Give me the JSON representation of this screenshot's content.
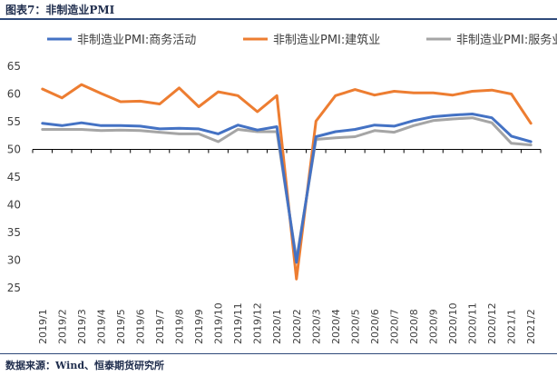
{
  "figure": {
    "title": "图表7：非制造业PMI",
    "source": "数据来源：Wind、恒泰期货研究所"
  },
  "chart_data": {
    "type": "line",
    "title": "",
    "xlabel": "",
    "ylabel": "",
    "ylim": [
      25,
      65
    ],
    "yticks": [
      25,
      30,
      35,
      40,
      45,
      50,
      55,
      60,
      65
    ],
    "reference_line": 50,
    "grid": false,
    "legend_position": "top",
    "categories": [
      "2019/1",
      "2019/2",
      "2019/3",
      "2019/4",
      "2019/5",
      "2019/6",
      "2019/7",
      "2019/8",
      "2019/9",
      "2019/10",
      "2019/11",
      "2019/12",
      "2020/1",
      "2020/2",
      "2020/3",
      "2020/4",
      "2020/5",
      "2020/6",
      "2020/7",
      "2020/8",
      "2020/9",
      "2020/10",
      "2020/11",
      "2020/12",
      "2021/1",
      "2021/2"
    ],
    "series": [
      {
        "name": "非制造业PMI:商务活动",
        "color": "#4472c4",
        "values": [
          54.7,
          54.3,
          54.8,
          54.3,
          54.3,
          54.2,
          53.7,
          53.8,
          53.7,
          52.8,
          54.4,
          53.5,
          54.1,
          29.6,
          52.3,
          53.2,
          53.6,
          54.4,
          54.2,
          55.2,
          55.9,
          56.2,
          56.4,
          55.7,
          52.4,
          51.4
        ]
      },
      {
        "name": "非制造业PMI:建筑业",
        "color": "#ed7d31",
        "values": [
          60.9,
          59.3,
          61.7,
          60.1,
          58.6,
          58.7,
          58.2,
          61.1,
          57.7,
          60.4,
          59.7,
          56.8,
          59.7,
          26.6,
          55.1,
          59.7,
          60.8,
          59.8,
          60.5,
          60.2,
          60.2,
          59.8,
          60.5,
          60.7,
          60.0,
          54.7
        ]
      },
      {
        "name": "非制造业PMI:服务业",
        "color": "#a5a5a5",
        "values": [
          53.6,
          53.6,
          53.6,
          53.4,
          53.5,
          53.4,
          53.1,
          52.8,
          52.8,
          51.4,
          53.6,
          53.2,
          53.2,
          30.1,
          51.8,
          52.1,
          52.3,
          53.4,
          53.1,
          54.3,
          55.2,
          55.5,
          55.7,
          54.8,
          51.1,
          50.8
        ]
      }
    ]
  }
}
